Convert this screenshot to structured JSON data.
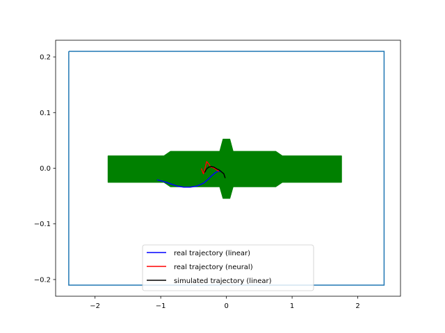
{
  "chart_data": {
    "type": "line",
    "title": "",
    "xlabel": "",
    "ylabel": "",
    "xlim": [
      -2.6,
      2.65
    ],
    "ylim": [
      -0.23,
      0.23
    ],
    "grid": false,
    "legend_placement": "lower center",
    "x_ticks": [
      {
        "value": -2,
        "label": "−2"
      },
      {
        "value": -1,
        "label": "−1"
      },
      {
        "value": 0,
        "label": "0"
      },
      {
        "value": 1,
        "label": "1"
      },
      {
        "value": 2,
        "label": "2"
      }
    ],
    "y_ticks": [
      {
        "value": 0.2,
        "label": "0.2"
      },
      {
        "value": 0.1,
        "label": "0.1"
      },
      {
        "value": 0.0,
        "label": "0.0"
      },
      {
        "value": -0.1,
        "label": "−0.1"
      },
      {
        "value": -0.2,
        "label": "−0.2"
      }
    ],
    "boundary": {
      "color": "#1f77b4",
      "x": [
        -2.4,
        2.4,
        2.4,
        -2.4,
        -2.4
      ],
      "y": [
        0.21,
        0.21,
        -0.21,
        -0.21,
        0.21
      ]
    },
    "track_region": {
      "color": "#008000",
      "x": [
        -1.8,
        -0.95,
        -0.85,
        -0.1,
        -0.05,
        0.05,
        0.1,
        0.75,
        0.85,
        1.75,
        1.75,
        0.85,
        0.75,
        0.1,
        0.05,
        -0.05,
        -0.1,
        -0.85,
        -0.95,
        -1.8
      ],
      "y": [
        0.022,
        0.022,
        0.03,
        0.03,
        0.052,
        0.052,
        0.03,
        0.03,
        0.022,
        0.022,
        -0.025,
        -0.025,
        -0.033,
        -0.033,
        -0.054,
        -0.054,
        -0.033,
        -0.033,
        -0.025,
        -0.025
      ]
    },
    "series": [
      {
        "name": "real trajectory (linear)",
        "color": "#0000ff",
        "x": [
          -1.05,
          -0.95,
          -0.85,
          -0.75,
          -0.65,
          -0.55,
          -0.45,
          -0.35,
          -0.28,
          -0.22,
          -0.17,
          -0.12,
          -0.08
        ],
        "y": [
          -0.021,
          -0.024,
          -0.028,
          -0.032,
          -0.034,
          -0.034,
          -0.032,
          -0.027,
          -0.02,
          -0.013,
          -0.008,
          -0.005,
          -0.006
        ]
      },
      {
        "name": "real trajectory (neural)",
        "color": "#ff0000",
        "x": [
          -0.38,
          -0.35,
          -0.33,
          -0.3,
          -0.27,
          -0.24,
          -0.2,
          -0.16,
          -0.12
        ],
        "y": [
          -0.001,
          -0.01,
          -0.002,
          0.012,
          0.008,
          0.002,
          0.001,
          -0.002,
          -0.005
        ]
      },
      {
        "name": "simulated trajectory (linear)",
        "color": "#000000",
        "x": [
          -0.33,
          -0.3,
          -0.27,
          -0.23,
          -0.19,
          -0.15,
          -0.11,
          -0.07,
          -0.04,
          -0.02
        ],
        "y": [
          -0.007,
          -0.001,
          0.002,
          0.003,
          0.002,
          -0.001,
          -0.003,
          -0.007,
          -0.01,
          -0.017
        ]
      }
    ]
  }
}
